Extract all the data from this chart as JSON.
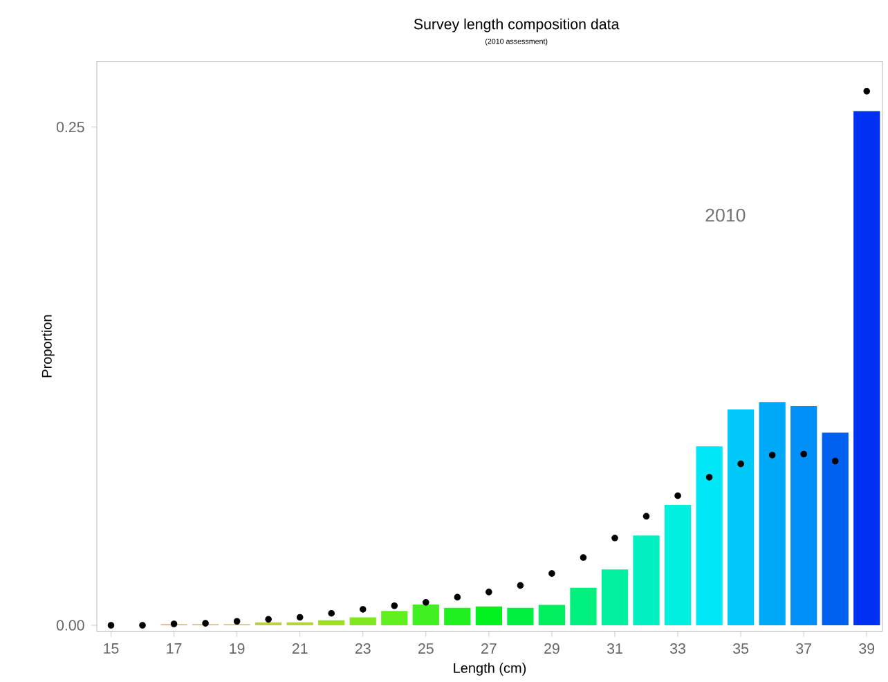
{
  "chart_data": {
    "type": "bar",
    "title": "Survey length composition data",
    "subtitle": "(2010 assessment)",
    "xlabel": "Length (cm)",
    "ylabel": "Proportion",
    "annotations": [
      "2010"
    ],
    "x": [
      15,
      16,
      17,
      18,
      19,
      20,
      21,
      22,
      23,
      24,
      25,
      26,
      27,
      28,
      29,
      30,
      31,
      32,
      33,
      34,
      35,
      36,
      37,
      38,
      39
    ],
    "series": [
      {
        "colors": [
          "#e0a070",
          "#e0a070",
          "#d9a86c",
          "#d2b070",
          "#c8b870",
          "#c0d040",
          "#b0d830",
          "#a0e020",
          "#80e820",
          "#60f020",
          "#40f020",
          "#20f020",
          "#00f020",
          "#00f040",
          "#00f060",
          "#00f080",
          "#00f0a0",
          "#00f0c0",
          "#00f0e0",
          "#00e8f8",
          "#00c8f8",
          "#00a8f8",
          "#0090f8",
          "#0060f0",
          "#0030f0"
        ],
        "values": [
          0,
          0,
          0.0005,
          0.0005,
          0.0005,
          0.0015,
          0.0015,
          0.0025,
          0.004,
          0.0072,
          0.0104,
          0.0088,
          0.0095,
          0.0088,
          0.0102,
          0.0188,
          0.028,
          0.045,
          0.0604,
          0.0898,
          0.1083,
          0.112,
          0.11,
          0.0967,
          0.258
        ]
      },
      {
        "type": "scatter",
        "color": "#000000",
        "values": [
          0,
          0,
          0.0007,
          0.001,
          0.002,
          0.003,
          0.004,
          0.006,
          0.008,
          0.0098,
          0.0115,
          0.0141,
          0.0167,
          0.02,
          0.026,
          0.034,
          0.0438,
          0.0547,
          0.065,
          0.0743,
          0.081,
          0.0854,
          0.0859,
          0.0824,
          0.268
        ]
      }
    ],
    "xlim": [
      14.55,
      39.5
    ],
    "ylim": [
      -0.003,
      0.283
    ],
    "xticks": [
      15,
      17,
      19,
      21,
      23,
      25,
      27,
      29,
      31,
      33,
      35,
      37,
      39
    ],
    "yticks": [
      {
        "value": 0,
        "label": "0.00"
      },
      {
        "value": 0.25,
        "label": "0.25"
      }
    ],
    "grid": false
  }
}
